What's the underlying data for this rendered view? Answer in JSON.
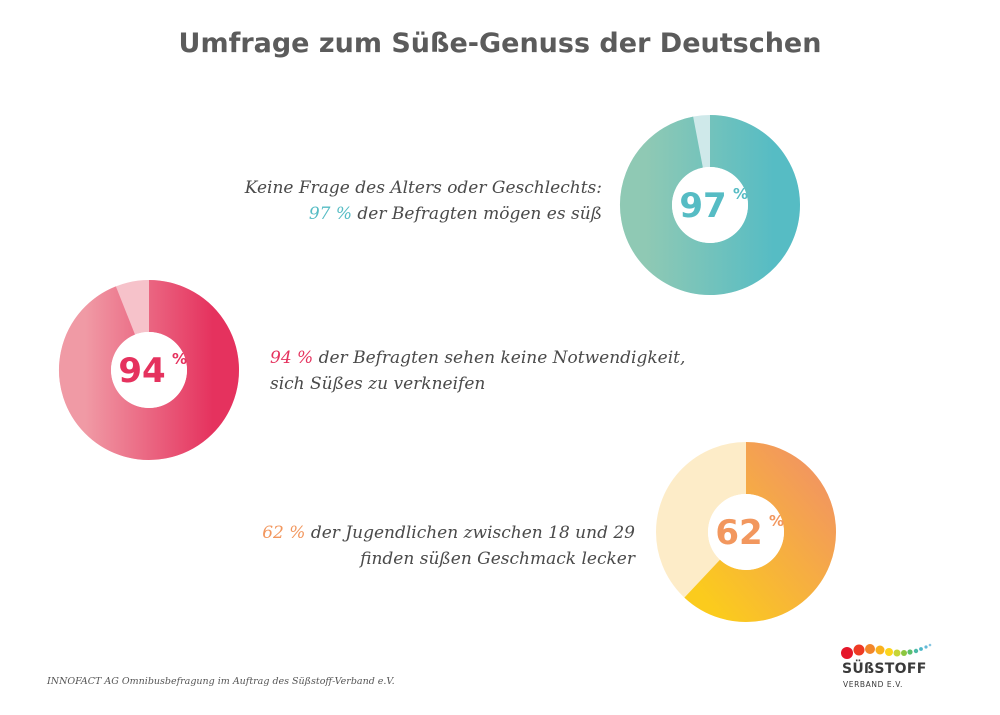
{
  "title": "Umfrage zum Süße-Genuss der Deutschen",
  "chart_data": [
    {
      "type": "pie",
      "value": 97,
      "label": "97",
      "unit": "%",
      "colors": {
        "start": "#8fc9b4",
        "end": "#56bcc4",
        "rest": "#cfe9ea"
      },
      "caption": {
        "line1": "Keine Frage des Alters oder Geschlechts:",
        "highlight": "97 %",
        "line2_rest": " der Befragten mögen es süß"
      }
    },
    {
      "type": "pie",
      "value": 94,
      "label": "94",
      "unit": "%",
      "colors": {
        "start": "#f09aa5",
        "end": "#e5325e",
        "rest": "#f6c2ca"
      },
      "caption": {
        "highlight": "94 %",
        "line1_rest": " der Befragten sehen keine Notwendigkeit,",
        "line2": "sich Süßes zu verkneifen"
      }
    },
    {
      "type": "pie",
      "value": 62,
      "label": "62",
      "unit": "%",
      "colors": {
        "start": "#fbcb1d",
        "end": "#f2975e",
        "rest": "#fdecc8"
      },
      "caption": {
        "highlight": "62 %",
        "line1_rest": " der Jugendlichen zwischen 18 und 29",
        "line2": "finden süßen Geschmack lecker"
      }
    }
  ],
  "footer": "INNOFACT AG Omnibusbefragung im Auftrag des Süßstoff-Verband e.V.",
  "logo": {
    "word": "SÜßSTOFF",
    "sub": "VERBAND E.V."
  }
}
